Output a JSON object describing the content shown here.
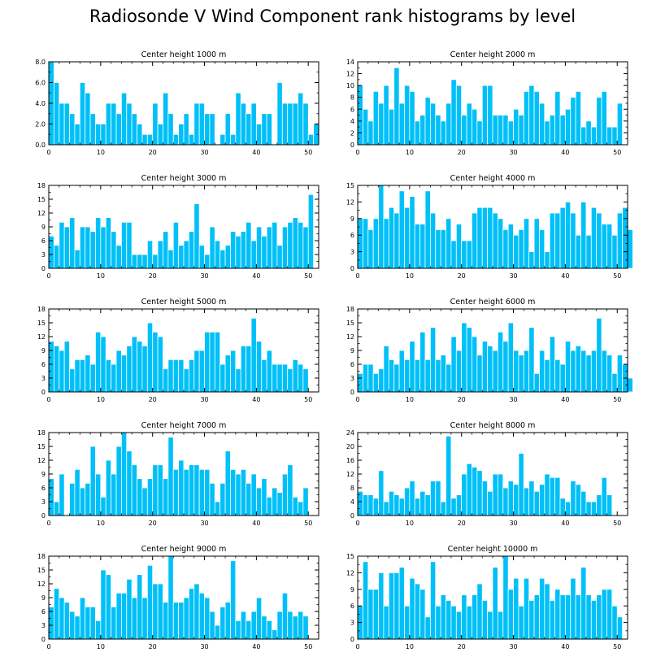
{
  "title": "Radiosonde V Wind Component rank histograms by level",
  "colors": {
    "bar": "#00c0f8",
    "bar_edge": "#ffffff",
    "axis": "#000000"
  },
  "chart_data": [
    {
      "type": "bar",
      "title": "Center height 1000 m",
      "xlim": [
        0,
        52
      ],
      "xticks": [
        0,
        10,
        20,
        30,
        40,
        50
      ],
      "ylim": [
        0,
        8
      ],
      "yticks": [
        "0.0",
        "2.0",
        "4.0",
        "6.0",
        "8.0"
      ],
      "ytick_values": [
        0,
        2,
        4,
        6,
        8
      ],
      "values": [
        8,
        6,
        4,
        4,
        3,
        2,
        6,
        5,
        3,
        2,
        2,
        4,
        4,
        3,
        5,
        4,
        3,
        2,
        1,
        1,
        4,
        2,
        5,
        3,
        1,
        2,
        3,
        1,
        4,
        4,
        3,
        3,
        0,
        1,
        3,
        1,
        5,
        4,
        3,
        4,
        2,
        3,
        3,
        0,
        6,
        4,
        4,
        4,
        5,
        4,
        1,
        2
      ]
    },
    {
      "type": "bar",
      "title": "Center height 2000 m",
      "xlim": [
        0,
        52
      ],
      "xticks": [
        0,
        10,
        20,
        30,
        40,
        50
      ],
      "ylim": [
        0,
        14
      ],
      "yticks": [
        "0",
        "2",
        "4",
        "6",
        "8",
        "10",
        "12",
        "14"
      ],
      "ytick_values": [
        0,
        2,
        4,
        6,
        8,
        10,
        12,
        14
      ],
      "values": [
        10,
        6,
        4,
        9,
        7,
        10,
        6,
        13,
        7,
        10,
        9,
        4,
        5,
        8,
        7,
        5,
        4,
        7,
        11,
        10,
        5,
        7,
        6,
        4,
        10,
        10,
        5,
        5,
        5,
        4,
        6,
        5,
        9,
        10,
        9,
        7,
        4,
        5,
        9,
        5,
        6,
        8,
        9,
        3,
        4,
        3,
        8,
        9,
        3,
        3,
        7,
        0
      ]
    },
    {
      "type": "bar",
      "title": "Center height 3000 m",
      "xlim": [
        0,
        52
      ],
      "xticks": [
        0,
        10,
        20,
        30,
        40,
        50
      ],
      "ylim": [
        0,
        18
      ],
      "yticks": [
        "0",
        "3",
        "6",
        "9",
        "12",
        "15",
        "18"
      ],
      "ytick_values": [
        0,
        3,
        6,
        9,
        12,
        15,
        18
      ],
      "values": [
        7,
        5,
        10,
        9,
        11,
        4,
        9,
        9,
        8,
        11,
        9,
        11,
        8,
        5,
        10,
        10,
        3,
        3,
        3,
        6,
        3,
        6,
        8,
        4,
        10,
        5,
        6,
        8,
        14,
        5,
        3,
        9,
        6,
        4,
        5,
        8,
        7,
        8,
        10,
        6,
        9,
        7,
        9,
        10,
        5,
        9,
        10,
        11,
        10,
        9,
        16,
        0
      ]
    },
    {
      "type": "bar",
      "title": "Center height 4000 m",
      "xlim": [
        0,
        52
      ],
      "xticks": [
        0,
        10,
        20,
        30,
        40,
        50
      ],
      "ylim": [
        0,
        15
      ],
      "yticks": [
        "0",
        "3",
        "6",
        "9",
        "12",
        "15"
      ],
      "ytick_values": [
        0,
        3,
        6,
        9,
        12,
        15
      ],
      "values": [
        9,
        9,
        7,
        9,
        15,
        9,
        11,
        10,
        14,
        11,
        13,
        8,
        8,
        14,
        10,
        7,
        7,
        9,
        5,
        8,
        5,
        5,
        10,
        11,
        11,
        11,
        10,
        9,
        7,
        8,
        6,
        7,
        9,
        3,
        9,
        7,
        3,
        10,
        10,
        11,
        12,
        10,
        6,
        12,
        6,
        11,
        10,
        8,
        8,
        6,
        10,
        11,
        7,
        0
      ]
    },
    {
      "type": "bar",
      "title": "Center height 5000 m",
      "xlim": [
        0,
        52
      ],
      "xticks": [
        0,
        10,
        20,
        30,
        40,
        50
      ],
      "ylim": [
        0,
        18
      ],
      "yticks": [
        "0",
        "3",
        "6",
        "9",
        "12",
        "15",
        "18"
      ],
      "ytick_values": [
        0,
        3,
        6,
        9,
        12,
        15,
        18
      ],
      "values": [
        11,
        10,
        9,
        11,
        5,
        7,
        7,
        8,
        6,
        13,
        12,
        7,
        6,
        9,
        8,
        10,
        12,
        11,
        10,
        15,
        13,
        12,
        5,
        7,
        7,
        7,
        5,
        7,
        9,
        9,
        13,
        13,
        13,
        6,
        8,
        9,
        5,
        10,
        10,
        16,
        11,
        7,
        9,
        6,
        6,
        6,
        5,
        7,
        6,
        5,
        0,
        0
      ]
    },
    {
      "type": "bar",
      "title": "Center height 6000 m",
      "xlim": [
        0,
        52
      ],
      "xticks": [
        0,
        10,
        20,
        30,
        40,
        50
      ],
      "ylim": [
        0,
        18
      ],
      "yticks": [
        "0",
        "3",
        "6",
        "9",
        "12",
        "15",
        "18"
      ],
      "ytick_values": [
        0,
        3,
        6,
        9,
        12,
        15,
        18
      ],
      "values": [
        4,
        6,
        6,
        4,
        5,
        10,
        7,
        6,
        9,
        7,
        11,
        7,
        13,
        7,
        14,
        7,
        8,
        6,
        12,
        9,
        15,
        14,
        12,
        8,
        11,
        10,
        9,
        13,
        11,
        15,
        9,
        8,
        9,
        14,
        4,
        9,
        7,
        12,
        7,
        6,
        11,
        9,
        10,
        9,
        8,
        9,
        16,
        9,
        8,
        4,
        8,
        6,
        3,
        0
      ]
    },
    {
      "type": "bar",
      "title": "Center height 7000 m",
      "xlim": [
        0,
        52
      ],
      "xticks": [
        0,
        10,
        20,
        30,
        40,
        50
      ],
      "ylim": [
        0,
        18
      ],
      "yticks": [
        "0",
        "3",
        "6",
        "9",
        "12",
        "15",
        "18"
      ],
      "ytick_values": [
        0,
        3,
        6,
        9,
        12,
        15,
        18
      ],
      "values": [
        8,
        3,
        9,
        0,
        7,
        10,
        6,
        7,
        15,
        9,
        4,
        12,
        9,
        15,
        18,
        14,
        11,
        8,
        6,
        8,
        11,
        11,
        8,
        17,
        10,
        12,
        10,
        11,
        11,
        10,
        10,
        7,
        3,
        7,
        14,
        10,
        9,
        10,
        7,
        9,
        6,
        8,
        4,
        6,
        5,
        9,
        11,
        4,
        3,
        6,
        0,
        0
      ]
    },
    {
      "type": "bar",
      "title": "Center height 8000 m",
      "xlim": [
        0,
        52
      ],
      "xticks": [
        0,
        10,
        20,
        30,
        40,
        50
      ],
      "ylim": [
        0,
        24
      ],
      "yticks": [
        "0",
        "4",
        "8",
        "12",
        "16",
        "20",
        "24"
      ],
      "ytick_values": [
        0,
        4,
        8,
        12,
        16,
        20,
        24
      ],
      "values": [
        7,
        6,
        6,
        5,
        13,
        4,
        7,
        6,
        5,
        8,
        10,
        5,
        7,
        6,
        10,
        10,
        4,
        23,
        5,
        6,
        12,
        15,
        14,
        13,
        10,
        7,
        12,
        12,
        8,
        10,
        9,
        18,
        8,
        10,
        7,
        9,
        12,
        11,
        11,
        5,
        4,
        10,
        9,
        7,
        4,
        4,
        6,
        11,
        6,
        0,
        0,
        0
      ]
    },
    {
      "type": "bar",
      "title": "Center height 9000 m",
      "xlim": [
        0,
        52
      ],
      "xticks": [
        0,
        10,
        20,
        30,
        40,
        50
      ],
      "ylim": [
        0,
        18
      ],
      "yticks": [
        "0",
        "3",
        "6",
        "9",
        "12",
        "15",
        "18"
      ],
      "ytick_values": [
        0,
        3,
        6,
        9,
        12,
        15,
        18
      ],
      "values": [
        7,
        11,
        9,
        8,
        6,
        5,
        9,
        7,
        7,
        4,
        15,
        14,
        7,
        10,
        10,
        13,
        9,
        14,
        9,
        16,
        12,
        12,
        8,
        18,
        8,
        8,
        9,
        11,
        12,
        10,
        9,
        6,
        3,
        7,
        8,
        17,
        4,
        6,
        4,
        6,
        9,
        5,
        4,
        2,
        6,
        10,
        6,
        5,
        6,
        5,
        0,
        0
      ]
    },
    {
      "type": "bar",
      "title": "Center height 10000 m",
      "xlim": [
        0,
        52
      ],
      "xticks": [
        0,
        10,
        20,
        30,
        40,
        50
      ],
      "ylim": [
        0,
        15
      ],
      "yticks": [
        "0",
        "3",
        "6",
        "9",
        "12",
        "15"
      ],
      "ytick_values": [
        0,
        3,
        6,
        9,
        12,
        15
      ],
      "values": [
        6,
        14,
        9,
        9,
        12,
        6,
        12,
        12,
        13,
        6,
        11,
        10,
        9,
        4,
        14,
        6,
        8,
        7,
        6,
        5,
        8,
        6,
        8,
        10,
        7,
        5,
        13,
        5,
        15,
        9,
        11,
        6,
        11,
        7,
        8,
        11,
        10,
        7,
        9,
        8,
        8,
        11,
        8,
        13,
        8,
        7,
        8,
        9,
        9,
        6,
        4,
        0
      ]
    }
  ]
}
